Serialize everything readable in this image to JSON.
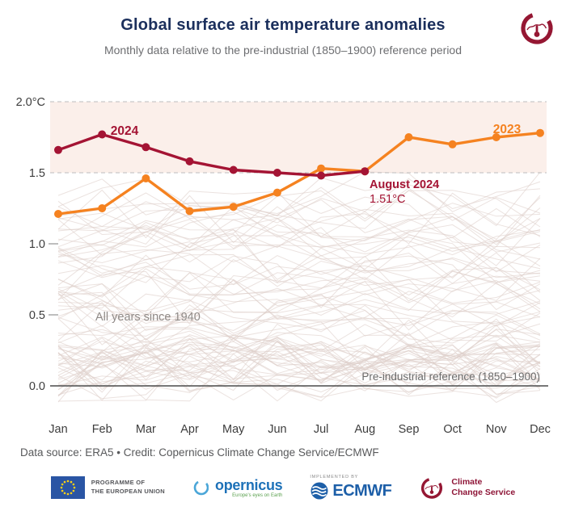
{
  "header": {
    "title": "Global surface air temperature anomalies",
    "subtitle": "Monthly data relative to the pre-industrial (1850–1900) reference period"
  },
  "chart_data": {
    "type": "line",
    "categories": [
      "Jan",
      "Feb",
      "Mar",
      "Apr",
      "May",
      "Jun",
      "Jul",
      "Aug",
      "Sep",
      "Oct",
      "Nov",
      "Dec"
    ],
    "unit": "°C",
    "ylim": [
      -0.25,
      2.05
    ],
    "y_ticks": [
      {
        "label": "2.0°C",
        "value": 2.0,
        "grid": "dashed"
      },
      {
        "label": "1.5",
        "value": 1.5,
        "grid": "dashed"
      },
      {
        "label": "1.0",
        "value": 1.0,
        "grid": "tick"
      },
      {
        "label": "0.5",
        "value": 0.5,
        "grid": "tick"
      },
      {
        "label": "0.0",
        "value": 0.0,
        "grid": "solid"
      }
    ],
    "band": {
      "from": 1.5,
      "to": 2.0,
      "color": "#fbefea"
    },
    "series": [
      {
        "name": "2023",
        "color": "#f58220",
        "values": [
          1.21,
          1.25,
          1.46,
          1.23,
          1.26,
          1.36,
          1.53,
          1.51,
          1.75,
          1.7,
          1.75,
          1.78
        ]
      },
      {
        "name": "2024",
        "color": "#a41434",
        "values": [
          1.66,
          1.77,
          1.68,
          1.58,
          1.52,
          1.5,
          1.48,
          1.51
        ]
      }
    ],
    "background_years": {
      "label": "All years since 1940",
      "from": 1940,
      "to": 2023,
      "color": "#ddcfca"
    },
    "annotations": {
      "series_2024_label": "2024",
      "series_2023_label": "2023",
      "highlight_label": "August 2024",
      "highlight_value": "1.51°C",
      "background_label": "All years since 1940",
      "reference_label": "Pre-industrial reference (1850–1900)"
    }
  },
  "footer": {
    "credit": "Data source: ERA5 • Credit: Copernicus Climate Change Service/ECMWF",
    "logos": {
      "eu_programme": {
        "line1": "PROGRAMME OF",
        "line2": "THE EUROPEAN UNION"
      },
      "copernicus": {
        "name": "opernicus",
        "tagline": "Europe's eyes on Earth"
      },
      "ecmwf": {
        "implemented_by": "IMPLEMENTED BY",
        "name": "ECMWF"
      },
      "c3s": {
        "line1": "Climate",
        "line2": "Change Service"
      }
    }
  }
}
